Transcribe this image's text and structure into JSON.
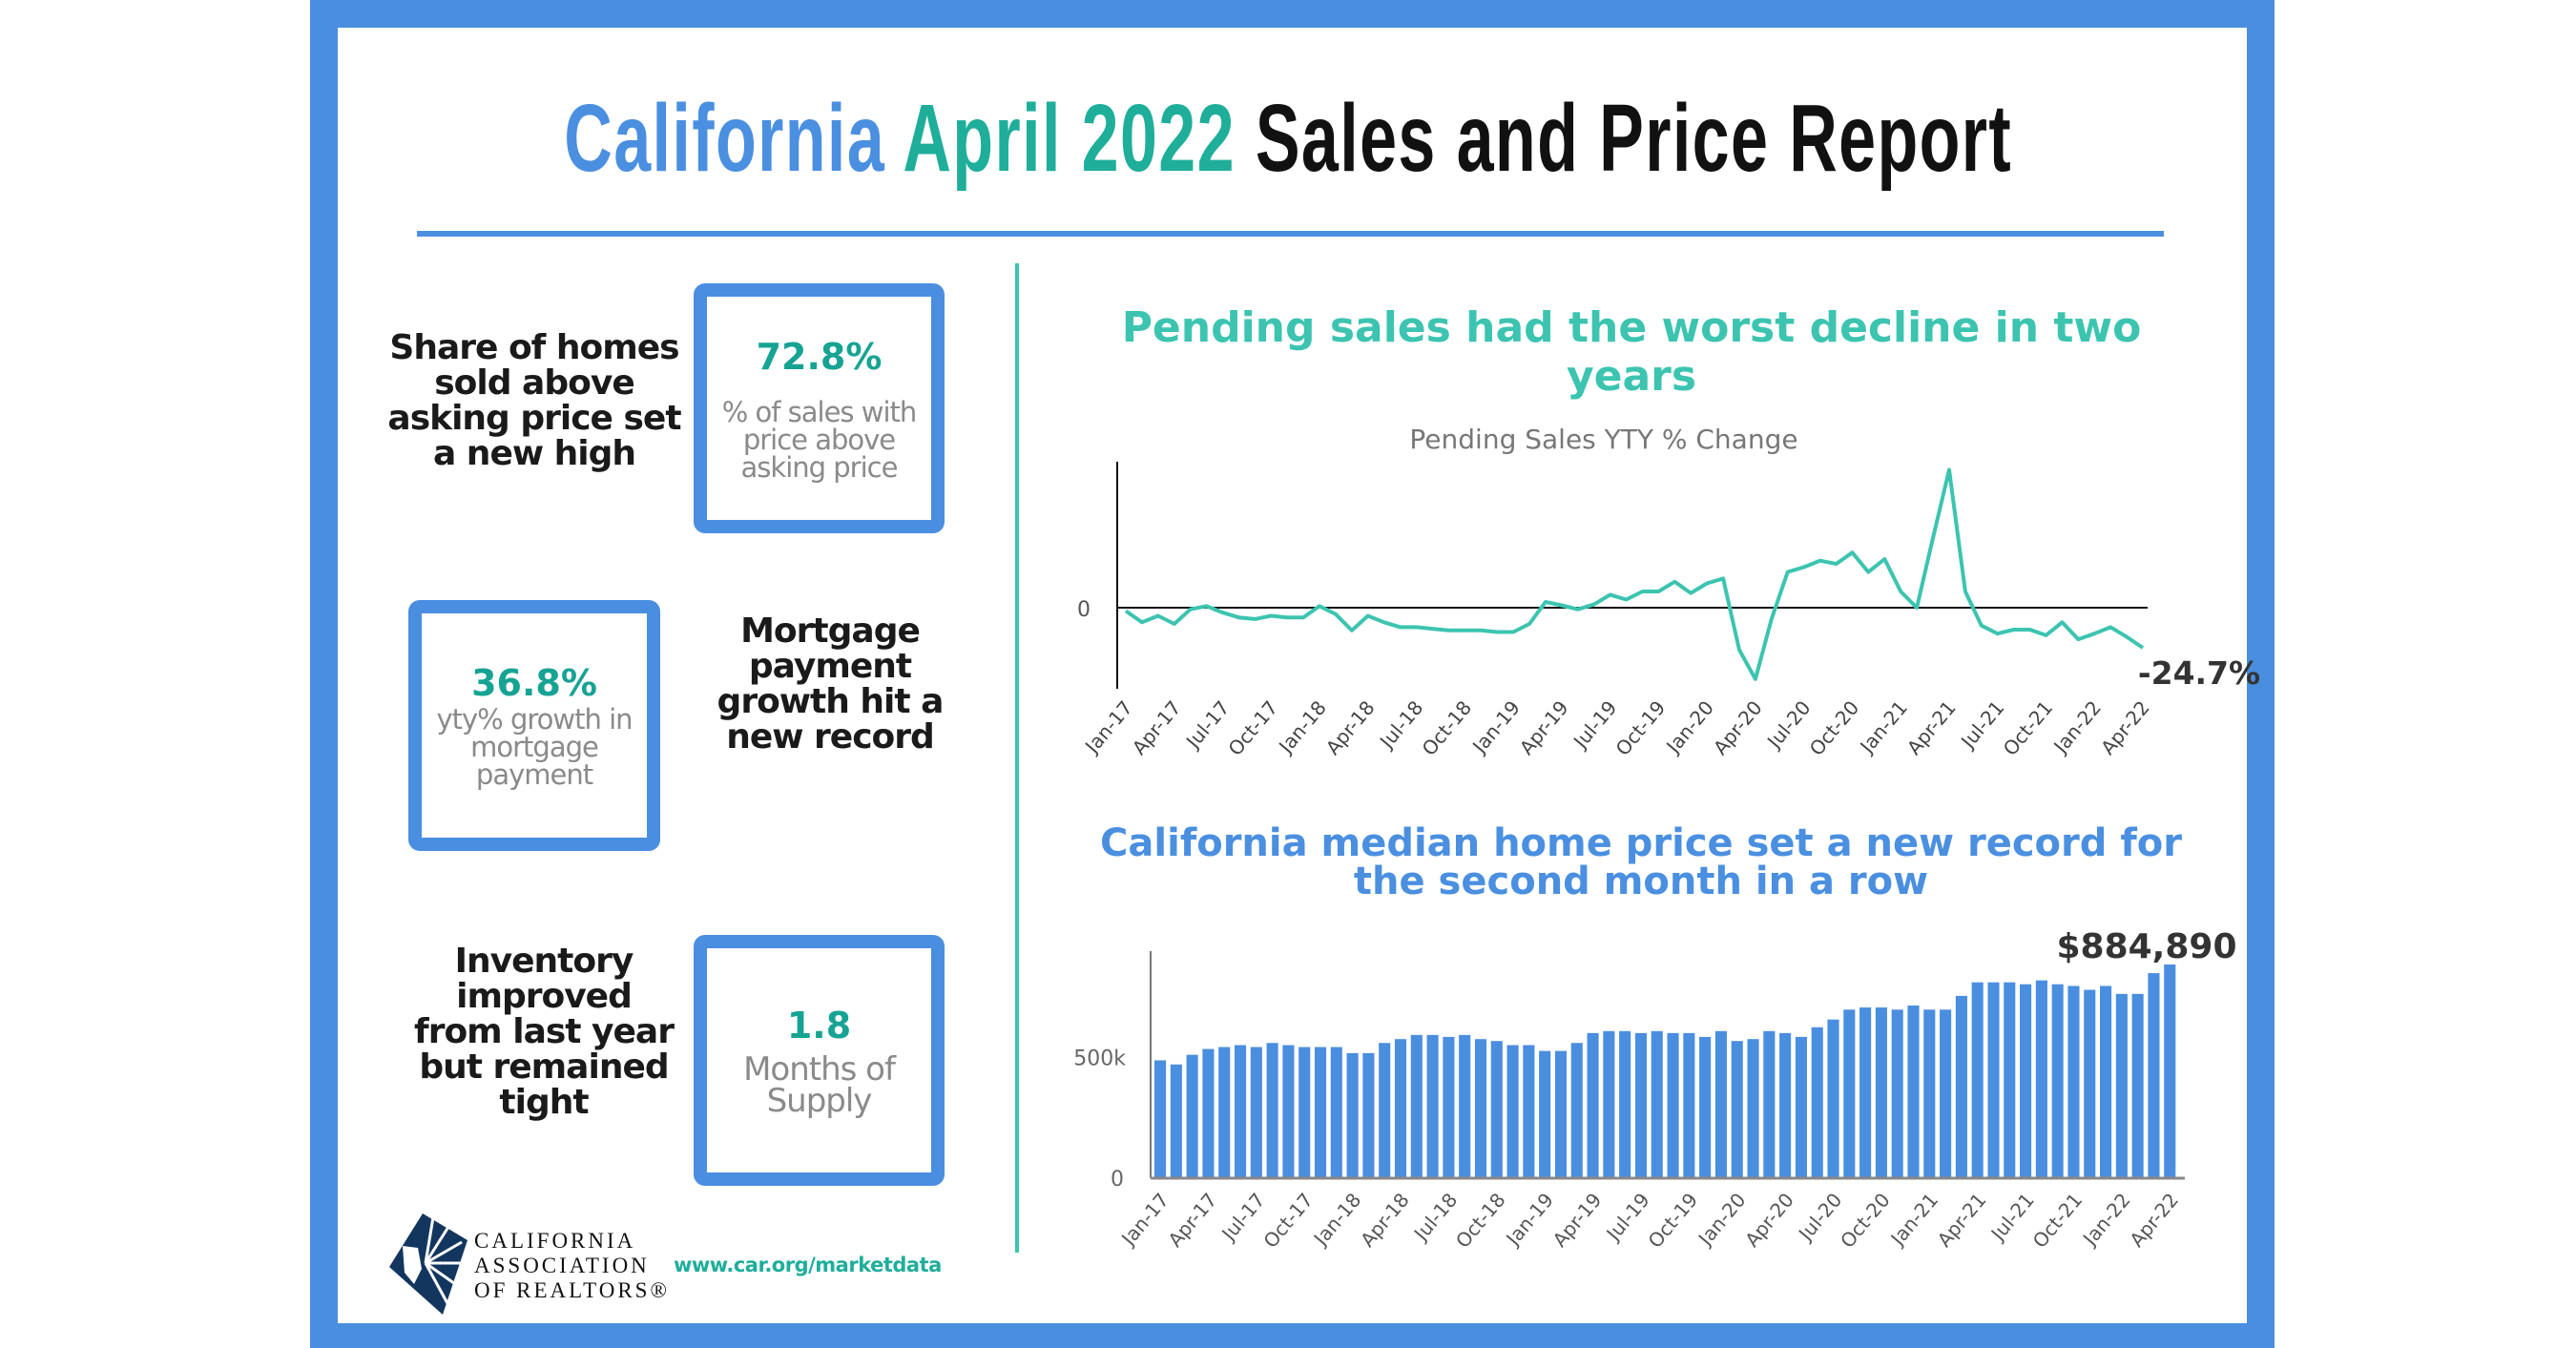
{
  "title": {
    "part1": "California",
    "part2": "April 2022",
    "part3": "Sales and Price Report"
  },
  "colors": {
    "frame": "#4a8ee0",
    "teal": "#1fae9a",
    "line": "#3cc4b0",
    "bar": "#4a8ee0",
    "title_blue": "#4a8fe0"
  },
  "stats": [
    {
      "statement": [
        "Share of homes",
        "sold above",
        "asking price set",
        "a new high"
      ],
      "value": "72.8%",
      "label": [
        "% of sales with",
        "price above",
        "asking price"
      ]
    },
    {
      "statement": [
        "Mortgage",
        "payment",
        "growth hit a",
        "new record"
      ],
      "value": "36.8%",
      "label": [
        "yty% growth in",
        "mortgage",
        "payment"
      ]
    },
    {
      "statement": [
        "Inventory",
        "improved",
        "from last year",
        "but remained",
        "tight"
      ],
      "value": "1.8",
      "label": [
        "Months of",
        "Supply"
      ]
    }
  ],
  "footer": {
    "logo_lines": [
      "CALIFORNIA",
      "ASSOCIATION",
      "OF REALTORS®"
    ],
    "url": "www.car.org/marketdata"
  },
  "chart_data": [
    {
      "type": "line",
      "headline": "Pending sales had the worst decline in two years",
      "title": "Pending Sales YTY % Change",
      "y_ticks": [
        "0"
      ],
      "ylim": [
        -50,
        90
      ],
      "x_tick_labels": [
        "Jan-17",
        "Apr-17",
        "Jul-17",
        "Oct-17",
        "Jan-18",
        "Apr-18",
        "Jul-18",
        "Oct-18",
        "Jan-19",
        "Apr-19",
        "Jul-19",
        "Oct-19",
        "Jan-20",
        "Apr-20",
        "Jul-20",
        "Oct-20",
        "Jan-21",
        "Apr-21",
        "Jul-21",
        "Oct-21",
        "Jan-22",
        "Apr-22"
      ],
      "values": [
        -2,
        -9,
        -5,
        -10,
        -1,
        1,
        -3,
        -6,
        -7,
        -5,
        -6,
        -6,
        1,
        -4,
        -14,
        -5,
        -9,
        -12,
        -12,
        -13,
        -14,
        -14,
        -14,
        -15,
        -15,
        -10,
        3.5,
        1.5,
        -1,
        2,
        8,
        5,
        10,
        10,
        16,
        9,
        15,
        18,
        -26,
        -44,
        -7,
        22,
        25,
        29,
        27,
        34,
        22,
        30,
        10,
        0,
        43,
        85,
        10,
        -11,
        -16,
        -13.5,
        -13.5,
        -17,
        -9,
        -19.5,
        -16,
        -12,
        -18,
        -24.7
      ],
      "last_label": "-24.7%"
    },
    {
      "type": "bar",
      "headline": [
        "California median home price set a new record for",
        "the second month in a row"
      ],
      "y_ticks": [
        "0",
        "500k"
      ],
      "ylim": [
        0,
        900000
      ],
      "x_tick_labels": [
        "Jan-17",
        "Apr-17",
        "Jul-17",
        "Oct-17",
        "Jan-18",
        "Apr-18",
        "Jul-18",
        "Oct-18",
        "Jan-19",
        "Apr-19",
        "Jul-19",
        "Oct-19",
        "Jan-20",
        "Apr-20",
        "Jul-20",
        "Oct-20",
        "Jan-21",
        "Apr-21",
        "Jul-21",
        "Oct-21",
        "Jan-22",
        "Apr-22"
      ],
      "values": [
        488000,
        471000,
        511000,
        535000,
        543000,
        551000,
        543000,
        560000,
        551000,
        543000,
        543000,
        543000,
        518000,
        518000,
        560000,
        576000,
        593000,
        593000,
        585000,
        593000,
        576000,
        568000,
        551000,
        551000,
        527000,
        527000,
        560000,
        601000,
        609000,
        609000,
        601000,
        609000,
        601000,
        601000,
        585000,
        609000,
        568000,
        576000,
        609000,
        601000,
        585000,
        625000,
        657000,
        698000,
        707000,
        707000,
        698000,
        715000,
        698000,
        698000,
        755000,
        811000,
        811000,
        811000,
        803000,
        819000,
        803000,
        796000,
        780000,
        796000,
        763000,
        763000,
        849080,
        884890
      ],
      "last_label": "$884,890"
    }
  ]
}
